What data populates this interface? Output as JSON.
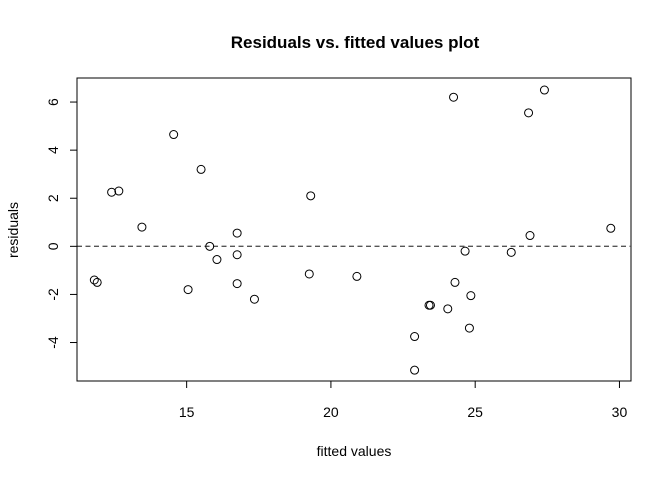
{
  "chart_data": {
    "type": "scatter",
    "title": "Residuals vs. fitted values plot",
    "xlabel": "fitted values",
    "ylabel": "residuals",
    "xlim": [
      11.2,
      30.4
    ],
    "ylim": [
      -5.6,
      7.0
    ],
    "x_ticks": [
      15,
      20,
      25,
      30
    ],
    "y_ticks": [
      -4,
      -2,
      0,
      2,
      4,
      6
    ],
    "x_tick_labels": [
      "15",
      "20",
      "25",
      "30"
    ],
    "y_tick_labels": [
      "-4",
      "-2",
      "0",
      "2",
      "4",
      "6"
    ],
    "reference_line": {
      "y": 0,
      "style": "dashed"
    },
    "marker": "open-circle",
    "grid": false,
    "points": [
      {
        "x": 11.8,
        "y": -1.4
      },
      {
        "x": 11.9,
        "y": -1.5
      },
      {
        "x": 12.4,
        "y": 2.25
      },
      {
        "x": 12.65,
        "y": 2.3
      },
      {
        "x": 13.45,
        "y": 0.8
      },
      {
        "x": 14.55,
        "y": 4.65
      },
      {
        "x": 15.05,
        "y": -1.8
      },
      {
        "x": 15.5,
        "y": 3.2
      },
      {
        "x": 15.8,
        "y": 0.0
      },
      {
        "x": 16.05,
        "y": -0.55
      },
      {
        "x": 16.75,
        "y": 0.55
      },
      {
        "x": 16.75,
        "y": -0.35
      },
      {
        "x": 16.75,
        "y": -1.55
      },
      {
        "x": 17.35,
        "y": -2.2
      },
      {
        "x": 19.25,
        "y": -1.15
      },
      {
        "x": 19.3,
        "y": 2.1
      },
      {
        "x": 20.9,
        "y": -1.25
      },
      {
        "x": 22.9,
        "y": -3.75
      },
      {
        "x": 22.9,
        "y": -5.15
      },
      {
        "x": 23.4,
        "y": -2.45
      },
      {
        "x": 23.45,
        "y": -2.45
      },
      {
        "x": 24.05,
        "y": -2.6
      },
      {
        "x": 24.25,
        "y": 6.2
      },
      {
        "x": 24.3,
        "y": -1.5
      },
      {
        "x": 24.65,
        "y": -0.2
      },
      {
        "x": 24.8,
        "y": -3.4
      },
      {
        "x": 24.85,
        "y": -2.05
      },
      {
        "x": 26.25,
        "y": -0.25
      },
      {
        "x": 26.85,
        "y": 5.55
      },
      {
        "x": 26.9,
        "y": 0.45
      },
      {
        "x": 27.4,
        "y": 6.5
      },
      {
        "x": 29.7,
        "y": 0.75
      }
    ]
  }
}
